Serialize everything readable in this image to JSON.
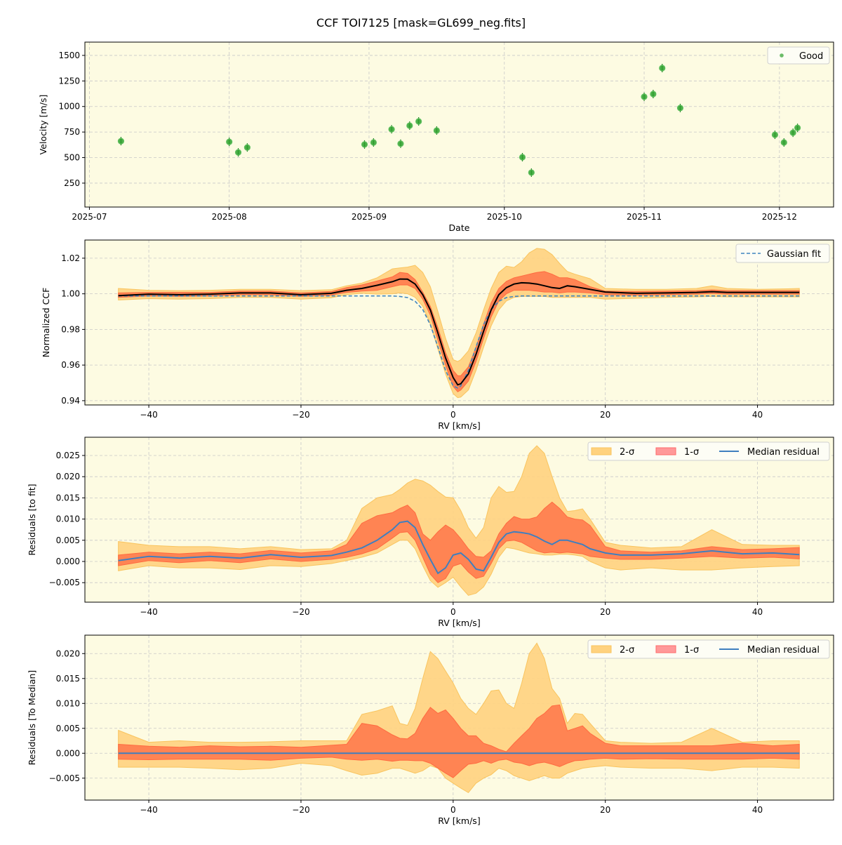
{
  "title": "CCF TOI7125 [mask=GL699_neg.fits]",
  "colors": {
    "background": "#fdfbe2",
    "good": "#2ca02c",
    "two_sigma": "#ffd27f",
    "one_sigma": "#ff7f50",
    "one_sigma_legend": "#ff9999",
    "median": "#3f7fbf",
    "gauss": "#3f85c0",
    "ccf": "#000000"
  },
  "chart_data": [
    {
      "type": "scatter",
      "xlabel": "Date",
      "ylabel": "Velocity [m/s]",
      "xlim": [
        "2025-06-30",
        "2025-12-13"
      ],
      "ylim": [
        16,
        1630
      ],
      "xticks": [
        "2025-07",
        "2025-08",
        "2025-09",
        "2025-10",
        "2025-11",
        "2025-12"
      ],
      "yticks": [
        250,
        500,
        750,
        1000,
        1250,
        1500
      ],
      "grid": true,
      "legend": "top-right",
      "series": [
        {
          "name": "Good",
          "x": [
            "2025-07-08",
            "2025-08-01",
            "2025-08-03",
            "2025-08-05",
            "2025-08-31",
            "2025-09-02",
            "2025-09-06",
            "2025-09-08",
            "2025-09-10",
            "2025-09-12",
            "2025-09-16",
            "2025-10-05",
            "2025-10-07",
            "2025-11-01",
            "2025-11-03",
            "2025-11-05",
            "2025-11-09",
            "2025-11-30",
            "2025-12-02",
            "2025-12-04",
            "2025-12-05"
          ],
          "y": [
            661,
            654,
            551,
            599,
            628,
            648,
            777,
            636,
            813,
            854,
            765,
            504,
            353,
            1095,
            1122,
            1376,
            985,
            723,
            648,
            743,
            791
          ]
        }
      ]
    },
    {
      "type": "line",
      "xlabel": "RV [km/s]",
      "ylabel": "Normalized CCF",
      "xlim": [
        -48.4,
        50
      ],
      "ylim": [
        0.9376,
        1.0302
      ],
      "xticks": [
        -40,
        -20,
        0,
        20,
        40
      ],
      "yticks": [
        0.94,
        0.96,
        0.98,
        1.0,
        1.02
      ],
      "grid": true,
      "legend": "top-right",
      "x": [
        -44,
        -40,
        -36,
        -32,
        -28,
        -24,
        -20,
        -16,
        -14,
        -12,
        -10,
        -8,
        -7,
        -6,
        -5,
        -4,
        -3,
        -2,
        -1,
        0,
        0.6,
        1,
        2,
        3,
        4,
        5,
        6,
        7,
        8,
        9,
        10,
        11,
        12,
        13,
        14,
        15,
        16,
        18,
        20,
        24,
        28,
        32,
        34,
        36,
        40,
        44,
        45.5
      ],
      "median": [
        0.999,
        0.9998,
        0.9995,
        0.9998,
        1.0005,
        1.0005,
        0.9995,
        1.0003,
        1.002,
        1.003,
        1.0048,
        1.0068,
        1.0083,
        1.0082,
        1.0055,
        0.9995,
        0.991,
        0.978,
        0.964,
        0.953,
        0.9489,
        0.9495,
        0.955,
        0.966,
        0.979,
        0.991,
        0.9995,
        1.0035,
        1.0055,
        1.0062,
        1.006,
        1.0055,
        1.0045,
        1.0035,
        1.003,
        1.0045,
        1.004,
        1.0025,
        1.001,
        1.0003,
        1.0005,
        1.0008,
        1.0012,
        1.0008,
        1.0008,
        1.0008,
        1.0008
      ],
      "one_sigma_hi": [
        1.0005,
        1.0008,
        1.0008,
        1.0008,
        1.0015,
        1.0015,
        1.0005,
        1.0013,
        1.0035,
        1.005,
        1.0072,
        1.0095,
        1.012,
        1.0115,
        1.008,
        1.001,
        0.993,
        0.981,
        0.967,
        0.957,
        0.954,
        0.954,
        0.959,
        0.97,
        0.983,
        0.995,
        1.003,
        1.007,
        1.009,
        1.01,
        1.011,
        1.012,
        1.0125,
        1.011,
        1.009,
        1.009,
        1.008,
        1.004,
        1.0015,
        1.0013,
        1.0015,
        1.0018,
        1.0022,
        1.0018,
        1.0018,
        1.0018,
        1.0018
      ],
      "one_sigma_lo": [
        0.998,
        0.9988,
        0.9985,
        0.9988,
        0.9995,
        0.9995,
        0.9985,
        0.9993,
        1.0008,
        1.0015,
        1.002,
        1.004,
        1.005,
        1.005,
        1.003,
        0.997,
        0.988,
        0.974,
        0.96,
        0.948,
        0.945,
        0.946,
        0.951,
        0.962,
        0.975,
        0.987,
        0.996,
        1.0,
        1.002,
        1.002,
        1.002,
        1.0015,
        1.001,
        1.001,
        1.0005,
        1.001,
        1.001,
        1.0005,
        0.9995,
        0.9993,
        0.9995,
        0.9998,
        1.0002,
        0.9998,
        0.9998,
        0.9998,
        0.9998
      ],
      "two_sigma_hi": [
        1.003,
        1.002,
        1.0018,
        1.002,
        1.0025,
        1.0025,
        1.0018,
        1.0023,
        1.0045,
        1.006,
        1.009,
        1.014,
        1.0145,
        1.015,
        1.016,
        1.012,
        1.004,
        0.99,
        0.975,
        0.963,
        0.962,
        0.963,
        0.968,
        0.978,
        0.991,
        1.003,
        1.012,
        1.0155,
        1.0148,
        1.018,
        1.023,
        1.0255,
        1.025,
        1.022,
        1.017,
        1.0125,
        1.011,
        1.0085,
        1.003,
        1.0025,
        1.0025,
        1.003,
        1.0045,
        1.003,
        1.0025,
        1.0028,
        1.003
      ],
      "two_sigma_lo": [
        0.9965,
        0.9973,
        0.997,
        0.9973,
        0.998,
        0.998,
        0.997,
        0.9978,
        0.9995,
        1.0003,
        0.9998,
        1.0,
        1.0005,
        1.0,
        0.998,
        0.993,
        0.983,
        0.969,
        0.955,
        0.944,
        0.9417,
        0.942,
        0.946,
        0.957,
        0.97,
        0.982,
        0.991,
        0.996,
        0.998,
        0.9985,
        0.9985,
        0.9985,
        0.9985,
        0.998,
        0.998,
        0.998,
        0.998,
        0.998,
        0.997,
        0.9975,
        0.998,
        0.9983,
        0.9985,
        0.9983,
        0.9983,
        0.9983,
        0.9983
      ],
      "gaussian_fit": [
        0.9988,
        0.9988,
        0.9988,
        0.9988,
        0.9988,
        0.9988,
        0.9988,
        0.9988,
        0.9988,
        0.9988,
        0.9988,
        0.9988,
        0.9985,
        0.9979,
        0.9958,
        0.9912,
        0.9826,
        0.9702,
        0.957,
        0.9483,
        0.9471,
        0.9483,
        0.957,
        0.9702,
        0.9826,
        0.9912,
        0.9958,
        0.9979,
        0.9985,
        0.9988,
        0.9988,
        0.9988,
        0.9988,
        0.9988,
        0.9988,
        0.9988,
        0.9988,
        0.9988,
        0.9988,
        0.9988,
        0.9988,
        0.9988,
        0.9988,
        0.9988,
        0.9988,
        0.9988,
        0.9988
      ],
      "legend_entries": [
        "Gaussian fit"
      ]
    },
    {
      "type": "area",
      "xlabel": "RV [km/s]",
      "ylabel": "Residuals [to fit]",
      "xlim": [
        -48.4,
        50
      ],
      "ylim": [
        -0.0096,
        0.0293
      ],
      "xticks": [
        -40,
        -20,
        0,
        20,
        40
      ],
      "yticks": [
        -0.005,
        0.0,
        0.005,
        0.01,
        0.015,
        0.02,
        0.025
      ],
      "grid": true,
      "legend": "top-right",
      "legend_entries": [
        "2-σ",
        "1-σ",
        "Median residual"
      ],
      "x": [
        -44,
        -40,
        -36,
        -32,
        -28,
        -24,
        -20,
        -16,
        -14,
        -12,
        -10,
        -8,
        -7,
        -6,
        -5,
        -4,
        -3,
        -2,
        -1,
        0,
        1,
        2,
        3,
        4,
        5,
        6,
        7,
        8,
        9,
        10,
        11,
        12,
        13,
        14,
        15,
        16,
        17,
        18,
        20,
        22,
        26,
        30,
        34,
        38,
        42,
        45.5
      ],
      "median": [
        0.0002,
        0.0012,
        0.0008,
        0.0012,
        0.0008,
        0.0016,
        0.001,
        0.0014,
        0.0022,
        0.0032,
        0.005,
        0.0075,
        0.0092,
        0.0095,
        0.008,
        0.004,
        0.0005,
        -0.0028,
        -0.0015,
        0.0015,
        0.002,
        0.0005,
        -0.0018,
        -0.0022,
        0.001,
        0.0045,
        0.0065,
        0.007,
        0.0068,
        0.0065,
        0.0058,
        0.0048,
        0.004,
        0.005,
        0.005,
        0.0045,
        0.004,
        0.003,
        0.002,
        0.0015,
        0.0015,
        0.0018,
        0.0025,
        0.0018,
        0.002,
        0.0016
      ],
      "one_sigma_hi": [
        0.0015,
        0.0022,
        0.0018,
        0.0022,
        0.0018,
        0.0026,
        0.002,
        0.0025,
        0.004,
        0.009,
        0.0108,
        0.0115,
        0.0125,
        0.0133,
        0.0115,
        0.0065,
        0.005,
        0.007,
        0.0086,
        0.0075,
        0.0054,
        0.003,
        0.0012,
        0.001,
        0.0025,
        0.0065,
        0.009,
        0.0106,
        0.01,
        0.01,
        0.0105,
        0.0125,
        0.014,
        0.0125,
        0.0105,
        0.01,
        0.0098,
        0.0085,
        0.0035,
        0.0025,
        0.0022,
        0.0025,
        0.0035,
        0.0028,
        0.003,
        0.0033
      ],
      "one_sigma_lo": [
        -0.001,
        0.0002,
        -0.0003,
        0.0002,
        -0.0003,
        0.0006,
        0.0,
        0.0005,
        0.001,
        0.0018,
        0.003,
        0.0055,
        0.0068,
        0.007,
        0.005,
        0.001,
        -0.003,
        -0.005,
        -0.004,
        -0.0011,
        -0.0005,
        -0.0025,
        -0.004,
        -0.0035,
        -0.0005,
        0.003,
        0.0048,
        0.005,
        0.0045,
        0.0035,
        0.0025,
        0.002,
        0.0022,
        0.002,
        0.0022,
        0.002,
        0.0018,
        0.0012,
        0.0008,
        0.0005,
        0.0005,
        0.0008,
        0.0012,
        0.0008,
        0.001,
        0.0006
      ],
      "two_sigma_hi": [
        0.0047,
        0.0038,
        0.0035,
        0.0035,
        0.003,
        0.0035,
        0.0028,
        0.003,
        0.005,
        0.0125,
        0.015,
        0.0158,
        0.017,
        0.0185,
        0.0194,
        0.019,
        0.018,
        0.0165,
        0.0152,
        0.015,
        0.012,
        0.008,
        0.0055,
        0.008,
        0.015,
        0.0177,
        0.0163,
        0.0165,
        0.02,
        0.0255,
        0.0273,
        0.0255,
        0.02,
        0.015,
        0.0118,
        0.012,
        0.0124,
        0.01,
        0.0045,
        0.0038,
        0.0032,
        0.0035,
        0.0075,
        0.004,
        0.0038,
        0.0038
      ],
      "two_sigma_lo": [
        -0.0022,
        -0.001,
        -0.0015,
        -0.0015,
        -0.0019,
        -0.001,
        -0.0012,
        -0.0005,
        0.0002,
        0.001,
        0.002,
        0.004,
        0.005,
        0.005,
        0.003,
        -0.001,
        -0.0045,
        -0.0061,
        -0.005,
        -0.0037,
        -0.006,
        -0.008,
        -0.0075,
        -0.006,
        -0.003,
        0.001,
        0.0033,
        0.003,
        0.0025,
        0.002,
        0.0018,
        0.0015,
        0.0015,
        0.0017,
        0.0017,
        0.0015,
        0.0012,
        0.0,
        -0.0015,
        -0.002,
        -0.0015,
        -0.002,
        -0.002,
        -0.0015,
        -0.0012,
        -0.001
      ]
    },
    {
      "type": "area",
      "xlabel": "RV [km/s]",
      "ylabel": "Residuals [To Median]",
      "xlim": [
        -48.4,
        50
      ],
      "ylim": [
        -0.0094,
        0.0237
      ],
      "xticks": [
        -40,
        -20,
        0,
        20,
        40
      ],
      "yticks": [
        -0.005,
        0.0,
        0.005,
        0.01,
        0.015,
        0.02
      ],
      "grid": true,
      "legend": "top-right",
      "legend_entries": [
        "2-σ",
        "1-σ",
        "Median residual"
      ],
      "x": [
        -44,
        -40,
        -36,
        -32,
        -28,
        -24,
        -20,
        -16,
        -14,
        -12,
        -10,
        -8,
        -7,
        -6,
        -5,
        -4,
        -3,
        -2,
        -1,
        0,
        1,
        2,
        3,
        4,
        5,
        6,
        7,
        8,
        9,
        10,
        11,
        12,
        13,
        14,
        15,
        16,
        17,
        18,
        20,
        22,
        26,
        30,
        34,
        38,
        42,
        45.5
      ],
      "median": [
        0,
        0,
        0,
        0,
        0,
        0,
        0,
        0,
        0,
        0,
        0,
        0,
        0,
        0,
        0,
        0,
        0,
        0,
        0,
        0,
        0,
        0,
        0,
        0,
        0,
        0,
        0,
        0,
        0,
        0,
        0,
        0,
        0,
        0,
        0,
        0,
        0,
        0,
        0,
        0,
        0,
        0,
        0,
        0,
        0,
        0
      ],
      "one_sigma_hi": [
        0.0018,
        0.0014,
        0.0012,
        0.0015,
        0.0013,
        0.0014,
        0.0012,
        0.0016,
        0.0018,
        0.006,
        0.0055,
        0.0037,
        0.003,
        0.0029,
        0.004,
        0.007,
        0.0092,
        0.008,
        0.0087,
        0.007,
        0.005,
        0.0035,
        0.0035,
        0.002,
        0.0015,
        0.0008,
        0.0003,
        0.002,
        0.0035,
        0.005,
        0.007,
        0.008,
        0.0095,
        0.0097,
        0.0045,
        0.005,
        0.0055,
        0.004,
        0.002,
        0.0015,
        0.0015,
        0.0015,
        0.0015,
        0.002,
        0.0015,
        0.0018
      ],
      "one_sigma_lo": [
        -0.0012,
        -0.0013,
        -0.0012,
        -0.0012,
        -0.0012,
        -0.0014,
        -0.001,
        -0.0008,
        -0.0012,
        -0.0014,
        -0.0012,
        -0.0016,
        -0.0014,
        -0.0014,
        -0.0015,
        -0.0015,
        -0.002,
        -0.003,
        -0.004,
        -0.0049,
        -0.0035,
        -0.0022,
        -0.002,
        -0.0015,
        -0.002,
        -0.0014,
        -0.0012,
        -0.0018,
        -0.002,
        -0.0025,
        -0.002,
        -0.0018,
        -0.0022,
        -0.0027,
        -0.002,
        -0.0015,
        -0.0014,
        -0.0012,
        -0.001,
        -0.0012,
        -0.0011,
        -0.0012,
        -0.0012,
        -0.0012,
        -0.001,
        -0.0012
      ],
      "two_sigma_hi": [
        0.0046,
        0.0022,
        0.0025,
        0.0022,
        0.0022,
        0.0023,
        0.0025,
        0.0025,
        0.0025,
        0.0078,
        0.0085,
        0.0095,
        0.006,
        0.0056,
        0.009,
        0.015,
        0.0204,
        0.019,
        0.0165,
        0.0141,
        0.011,
        0.009,
        0.0078,
        0.01,
        0.0125,
        0.0127,
        0.01,
        0.009,
        0.014,
        0.02,
        0.0221,
        0.019,
        0.013,
        0.011,
        0.006,
        0.008,
        0.0078,
        0.006,
        0.0025,
        0.0022,
        0.002,
        0.0022,
        0.005,
        0.0022,
        0.0025,
        0.0025
      ],
      "two_sigma_lo": [
        -0.0028,
        -0.0028,
        -0.0028,
        -0.003,
        -0.0033,
        -0.003,
        -0.002,
        -0.0025,
        -0.0035,
        -0.0044,
        -0.004,
        -0.003,
        -0.003,
        -0.0035,
        -0.004,
        -0.0035,
        -0.0025,
        -0.003,
        -0.005,
        -0.006,
        -0.007,
        -0.0079,
        -0.006,
        -0.005,
        -0.0043,
        -0.003,
        -0.0035,
        -0.0045,
        -0.005,
        -0.0055,
        -0.005,
        -0.0045,
        -0.005,
        -0.005,
        -0.004,
        -0.0035,
        -0.003,
        -0.0028,
        -0.0025,
        -0.0028,
        -0.003,
        -0.003,
        -0.0035,
        -0.0028,
        -0.0028,
        -0.003
      ]
    }
  ]
}
